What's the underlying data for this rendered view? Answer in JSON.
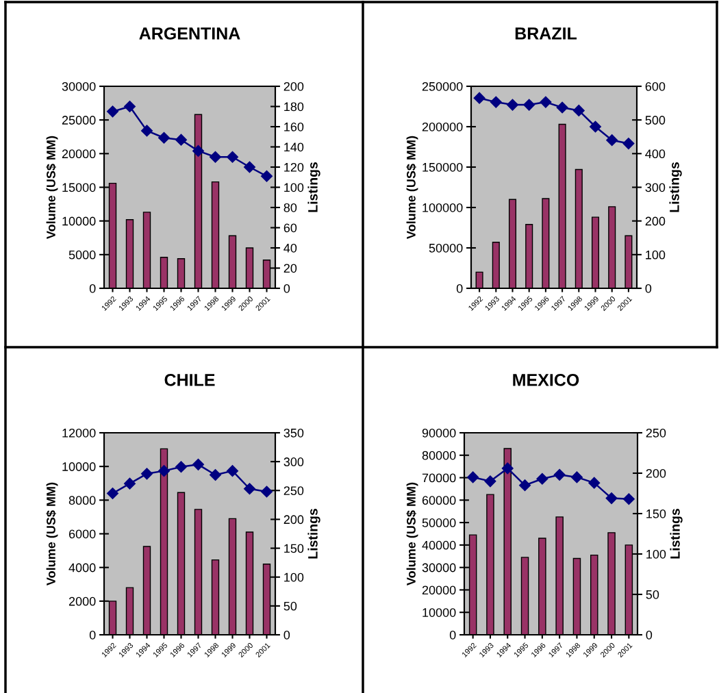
{
  "chart_data": [
    {
      "type": "bar",
      "title": "ARGENTINA",
      "ylabel": "Volume (US$ MM)",
      "y2label": "Listings",
      "categories": [
        "1992",
        "1993",
        "1994",
        "1995",
        "1996",
        "1997",
        "1998",
        "1999",
        "2000",
        "2001"
      ],
      "series": [
        {
          "color": "#993366",
          "values": [
            15600,
            10200,
            11300,
            4600,
            4400,
            25800,
            15800,
            7800,
            6000,
            4200
          ]
        },
        {
          "type": "line",
          "axis": "y2",
          "color": "#000080",
          "marker": "diamond",
          "values": [
            175,
            180,
            156,
            149,
            147,
            136,
            130,
            130,
            120,
            111
          ]
        }
      ],
      "ylim": [
        0,
        30000
      ],
      "yticks": [
        0,
        5000,
        10000,
        15000,
        20000,
        25000,
        30000
      ],
      "y2lim": [
        0,
        200
      ],
      "y2ticks": [
        0,
        20,
        40,
        60,
        80,
        100,
        120,
        140,
        160,
        180,
        200
      ],
      "grid": false
    },
    {
      "type": "bar",
      "title": "BRAZIL",
      "ylabel": "Volume (US$ MM)",
      "y2label": "Listings",
      "categories": [
        "1992",
        "1993",
        "1994",
        "1995",
        "1996",
        "1997",
        "1998",
        "1999",
        "2000",
        "2001"
      ],
      "series": [
        {
          "color": "#993366",
          "values": [
            20000,
            57000,
            110000,
            79000,
            111000,
            203000,
            147000,
            88000,
            101000,
            65000
          ]
        },
        {
          "type": "line",
          "axis": "y2",
          "color": "#000080",
          "marker": "diamond",
          "values": [
            565,
            553,
            545,
            545,
            553,
            537,
            528,
            480,
            440,
            430
          ]
        }
      ],
      "ylim": [
        0,
        250000
      ],
      "yticks": [
        0,
        50000,
        100000,
        150000,
        200000,
        250000
      ],
      "y2lim": [
        0,
        600
      ],
      "y2ticks": [
        0,
        100,
        200,
        300,
        400,
        500,
        600
      ],
      "grid": false
    },
    {
      "type": "bar",
      "title": "CHILE",
      "ylabel": "Volume (US$ MM)",
      "y2label": "Listings",
      "categories": [
        "1992",
        "1993",
        "1994",
        "1995",
        "1996",
        "1997",
        "1998",
        "1999",
        "2000",
        "2001"
      ],
      "series": [
        {
          "color": "#993366",
          "values": [
            2000,
            2800,
            5250,
            11050,
            8450,
            7450,
            4450,
            6900,
            6100,
            4200
          ]
        },
        {
          "type": "line",
          "axis": "y2",
          "color": "#000080",
          "marker": "diamond",
          "values": [
            245,
            262,
            279,
            284,
            291,
            295,
            277,
            284,
            253,
            248
          ]
        }
      ],
      "ylim": [
        0,
        12000
      ],
      "yticks": [
        0,
        2000,
        4000,
        6000,
        8000,
        10000,
        12000
      ],
      "y2lim": [
        0,
        350
      ],
      "y2ticks": [
        0,
        50,
        100,
        150,
        200,
        250,
        300,
        350
      ],
      "grid": false
    },
    {
      "type": "bar",
      "title": "MEXICO",
      "ylabel": "Volume (US$ MM)",
      "y2label": "Listings",
      "categories": [
        "1992",
        "1993",
        "1994",
        "1995",
        "1996",
        "1997",
        "1998",
        "1999",
        "2000",
        "2001"
      ],
      "series": [
        {
          "color": "#993366",
          "values": [
            44500,
            62500,
            83000,
            34500,
            43000,
            52500,
            34000,
            35500,
            45500,
            40000
          ]
        },
        {
          "type": "line",
          "axis": "y2",
          "color": "#000080",
          "marker": "diamond",
          "values": [
            195,
            190,
            206,
            185,
            193,
            198,
            195,
            188,
            169,
            168
          ]
        }
      ],
      "ylim": [
        0,
        90000
      ],
      "yticks": [
        0,
        10000,
        20000,
        30000,
        40000,
        50000,
        60000,
        70000,
        80000,
        90000
      ],
      "y2lim": [
        0,
        250
      ],
      "y2ticks": [
        0,
        50,
        100,
        150,
        200,
        250
      ],
      "grid": false
    }
  ]
}
